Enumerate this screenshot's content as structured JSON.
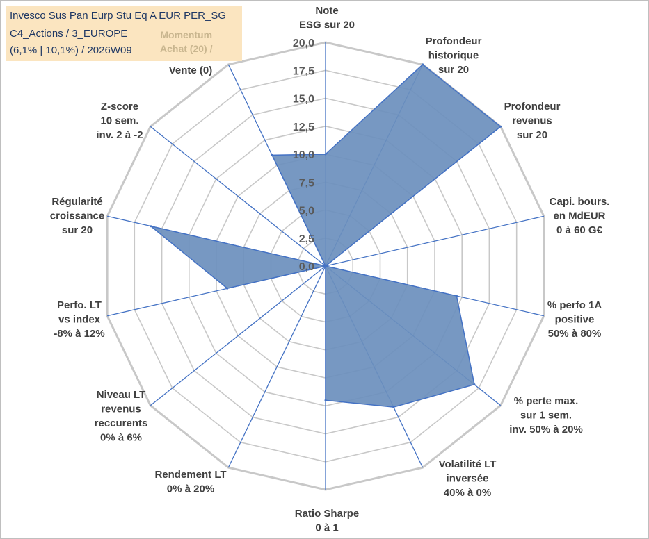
{
  "info": {
    "line1": "Invesco Sus Pan Eurp Stu Eq A EUR PER_SG",
    "line2": "C4_Actions / 3_EUROPE",
    "line3": "(6,1% | 10,1%) / 2026W09"
  },
  "momentum": {
    "line1": "Momentum",
    "line2": "Achat (20) /"
  },
  "colors": {
    "fill": "#6b8fbd",
    "stroke": "#4472c4",
    "grid": "#c8c8c8",
    "spoke": "#4472c4",
    "text": "#404040",
    "info_bg": "#fbe5c0",
    "info_text": "#1f3864",
    "momentum_text": "#c9b68f"
  },
  "chart_data": {
    "type": "radar",
    "title": "",
    "rmin": 0,
    "rmax": 20,
    "tick_step": 2.5,
    "tick_labels": [
      "0,0",
      "2,5",
      "5,0",
      "7,5",
      "10,0",
      "12,5",
      "15,0",
      "17,5",
      "20,0"
    ],
    "axes": [
      {
        "label": [
          "Note",
          "ESG sur 20"
        ],
        "value": 10
      },
      {
        "label": [
          "Profondeur",
          "historique",
          "sur 20"
        ],
        "value": 20
      },
      {
        "label": [
          "Profondeur",
          "revenus",
          "sur 20"
        ],
        "value": 20
      },
      {
        "label": [
          "Capi. bours.",
          "en MdEUR",
          "0 à 60 G€"
        ],
        "value": 0
      },
      {
        "label": [
          "% perfo 1A",
          "positive",
          "50% à 80%"
        ],
        "value": 12
      },
      {
        "label": [
          "% perte max.",
          "sur 1 sem.",
          "inv. 50% à 20%"
        ],
        "value": 17
      },
      {
        "label": [
          "Volatilité LT",
          "inversée",
          "40% à 0%"
        ],
        "value": 14
      },
      {
        "label": [
          "Ratio Sharpe",
          "0 à 1"
        ],
        "value": 12
      },
      {
        "label": [
          "Rendement LT",
          "0% à 20%"
        ],
        "value": 0
      },
      {
        "label": [
          "Niveau LT",
          "revenus",
          "reccurents",
          "0% à 6%"
        ],
        "value": 0
      },
      {
        "label": [
          "Perfo. LT",
          "vs index",
          "-8% à 12%"
        ],
        "value": 9
      },
      {
        "label": [
          "Régularité",
          "croissance",
          "sur 20"
        ],
        "value": 16
      },
      {
        "label": [
          "Z-score",
          "10 sem.",
          "inv. 2 à -2"
        ],
        "value": 0
      },
      {
        "label": [
          "Momentum Achat (20) /",
          "Vente (0)"
        ],
        "value": 11
      }
    ]
  }
}
